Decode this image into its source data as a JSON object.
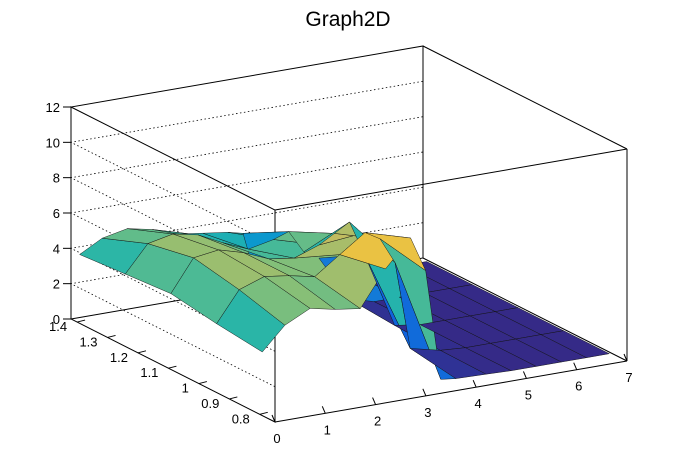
{
  "chart_data": {
    "type": "surface",
    "title": "Graph2D",
    "xlabel": "",
    "ylabel": "",
    "zlabel": "",
    "xlim": [
      0,
      7
    ],
    "ylim": [
      0.75,
      1.42
    ],
    "zlim": [
      0,
      12
    ],
    "x_ticks": [
      "0",
      "1",
      "2",
      "3",
      "4",
      "5",
      "6",
      "7"
    ],
    "y_ticks": [
      "0.8",
      "0.9",
      "1",
      "1.1",
      "1.2",
      "1.3",
      "1.4"
    ],
    "z_ticks": [
      "0",
      "2",
      "4",
      "6",
      "8",
      "10",
      "12"
    ],
    "palette": [
      "#352a87",
      "#0f5cdd",
      "#1481d6",
      "#06a4ca",
      "#2eb7a4",
      "#87bf77",
      "#d1bb59",
      "#fec832",
      "#f9fb0e"
    ],
    "grid": true,
    "surface_x": [
      0.05,
      0.5,
      1.0,
      1.5,
      2.0,
      2.5,
      3.0,
      3.3,
      3.6,
      3.9,
      4.5,
      5.0,
      5.5,
      6.0,
      6.5,
      6.95
    ],
    "surface_y": [
      0.8,
      0.95,
      1.1,
      1.25,
      1.4
    ],
    "surface_z": [
      [
        3.5,
        4.8,
        5.5,
        5.2,
        5.0,
        7.0,
        8.5,
        6.5,
        0.2,
        0.1,
        0.05,
        0.0,
        0.0,
        0.0,
        0.0,
        0.0
      ],
      [
        3.8,
        5.5,
        6.0,
        5.8,
        5.5,
        6.5,
        7.5,
        7.0,
        5.5,
        0.5,
        0.1,
        0.0,
        0.0,
        0.0,
        0.0,
        0.0
      ],
      [
        4.2,
        6.0,
        6.2,
        5.8,
        5.2,
        5.0,
        5.5,
        6.0,
        6.5,
        4.5,
        0.2,
        0.0,
        0.0,
        0.0,
        0.0,
        0.0
      ],
      [
        4.0,
        5.5,
        5.8,
        5.5,
        4.8,
        4.2,
        4.5,
        4.8,
        3.5,
        3.0,
        0.4,
        0.0,
        0.0,
        0.0,
        0.0,
        0.0
      ],
      [
        3.8,
        4.5,
        4.8,
        4.5,
        4.0,
        3.8,
        3.6,
        3.4,
        0.3,
        0.2,
        0.1,
        0.0,
        0.0,
        0.0,
        0.0,
        0.0
      ]
    ]
  }
}
